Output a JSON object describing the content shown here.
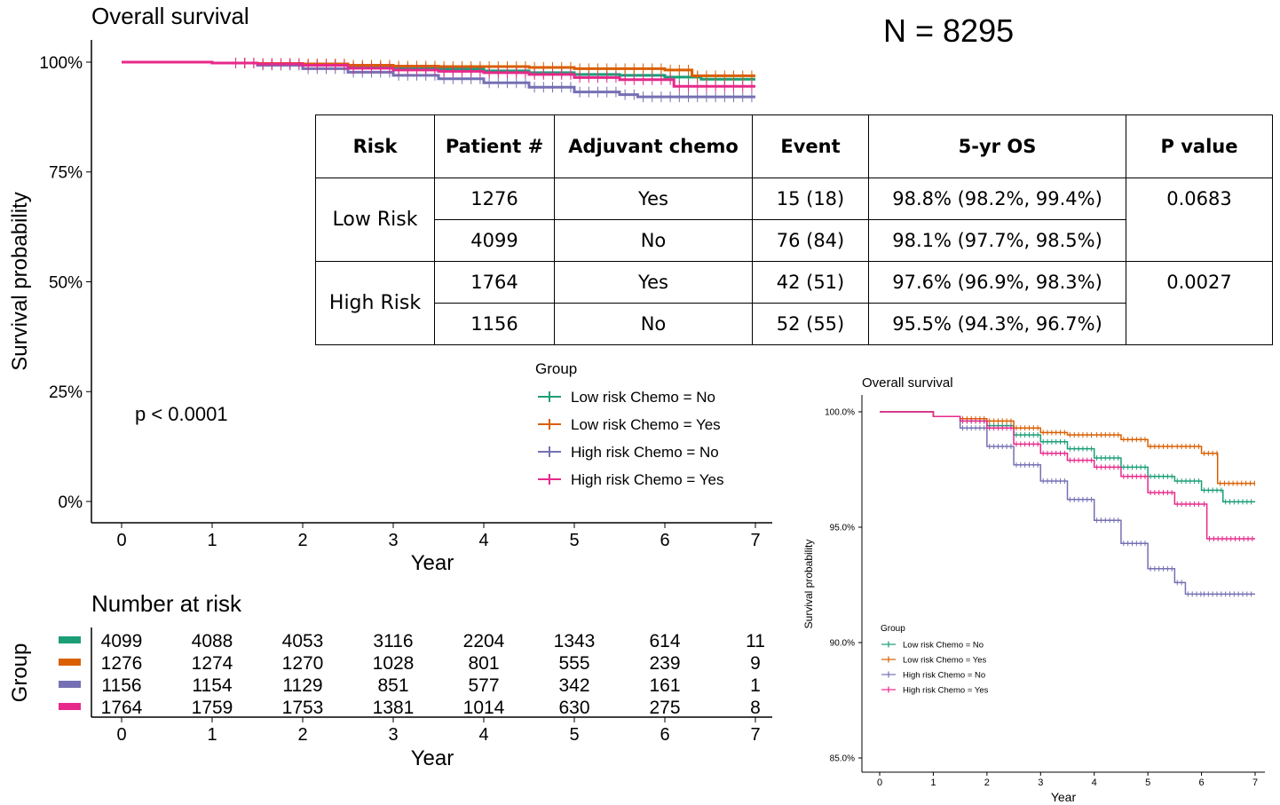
{
  "n_label": "N = 8295",
  "main_plot": {
    "title": "Overall survival",
    "pvalue": "p < 0.0001",
    "legend_title": "Group"
  },
  "table": {
    "headers": [
      "Risk",
      "Patient #",
      "Adjuvant chemo",
      "Event",
      "5-yr OS",
      "P value"
    ],
    "groups": [
      {
        "risk": "Low Risk",
        "pvalue": "0.0683",
        "rows": [
          {
            "patients": "1276",
            "chemo": "Yes",
            "event": "15 (18)",
            "os": "98.8% (98.2%, 99.4%)"
          },
          {
            "patients": "4099",
            "chemo": "No",
            "event": "76 (84)",
            "os": "98.1% (97.7%, 98.5%)"
          }
        ]
      },
      {
        "risk": "High Risk",
        "pvalue": "0.0027",
        "rows": [
          {
            "patients": "1764",
            "chemo": "Yes",
            "event": "42 (51)",
            "os": "97.6% (96.9%, 98.3%)"
          },
          {
            "patients": "1156",
            "chemo": "No",
            "event": "52 (55)",
            "os": "95.5% (94.3%, 96.7%)"
          }
        ]
      }
    ]
  },
  "risk_table": {
    "title": "Number at risk",
    "ylabel": "Group",
    "xlabel": "Year",
    "times": [
      0,
      1,
      2,
      3,
      4,
      5,
      6,
      7
    ],
    "rows": [
      {
        "color": "#1b9e77",
        "counts": [
          4099,
          4088,
          4053,
          3116,
          2204,
          1343,
          614,
          11
        ]
      },
      {
        "color": "#d95f02",
        "counts": [
          1276,
          1274,
          1270,
          1028,
          801,
          555,
          239,
          9
        ]
      },
      {
        "color": "#7570b3",
        "counts": [
          1156,
          1154,
          1129,
          851,
          577,
          342,
          161,
          1
        ]
      },
      {
        "color": "#e7298a",
        "counts": [
          1764,
          1759,
          1753,
          1381,
          1014,
          630,
          275,
          8
        ]
      }
    ]
  },
  "chart_data": [
    {
      "type": "line",
      "title": "Overall survival",
      "xlabel": "Year",
      "ylabel": "Survival probability",
      "xlim": [
        0,
        7
      ],
      "ylim": [
        0,
        1
      ],
      "xticks": [
        0,
        1,
        2,
        3,
        4,
        5,
        6,
        7
      ],
      "yticks": [
        0,
        0.25,
        0.5,
        0.75,
        1
      ],
      "ytick_labels": [
        "0%",
        "25%",
        "50%",
        "75%",
        "100%"
      ],
      "legend_title": "Group",
      "grid": false,
      "series": [
        {
          "name": "Low risk  Chemo = No",
          "color": "#1b9e77",
          "x": [
            0,
            1,
            1.5,
            2,
            2.5,
            3,
            3.5,
            4,
            4.5,
            5,
            5.5,
            6,
            6.4,
            7
          ],
          "y": [
            1.0,
            0.998,
            0.996,
            0.994,
            0.99,
            0.987,
            0.984,
            0.98,
            0.976,
            0.972,
            0.97,
            0.966,
            0.961,
            0.961
          ]
        },
        {
          "name": "Low risk  Chemo = Yes",
          "color": "#d95f02",
          "x": [
            0,
            1,
            1.5,
            2,
            2.5,
            3,
            3.5,
            4,
            4.5,
            5,
            5.5,
            6,
            6.3,
            7
          ],
          "y": [
            1.0,
            0.998,
            0.997,
            0.996,
            0.993,
            0.991,
            0.99,
            0.99,
            0.988,
            0.985,
            0.985,
            0.982,
            0.969,
            0.969
          ]
        },
        {
          "name": "High risk  Chemo = No",
          "color": "#7570b3",
          "x": [
            0,
            1,
            1.5,
            2,
            2.5,
            3,
            3.5,
            4,
            4.5,
            5,
            5.5,
            5.7,
            6,
            7
          ],
          "y": [
            1.0,
            0.998,
            0.993,
            0.985,
            0.977,
            0.97,
            0.962,
            0.953,
            0.943,
            0.932,
            0.926,
            0.921,
            0.921,
            0.921
          ]
        },
        {
          "name": "High risk  Chemo = Yes",
          "color": "#e7298a",
          "x": [
            0,
            1,
            1.5,
            2,
            2.5,
            3,
            3.5,
            4,
            4.5,
            5,
            5.5,
            6,
            6.1,
            7
          ],
          "y": [
            1.0,
            0.998,
            0.996,
            0.993,
            0.986,
            0.982,
            0.979,
            0.976,
            0.972,
            0.965,
            0.96,
            0.96,
            0.945,
            0.945
          ]
        }
      ]
    },
    {
      "type": "line",
      "title": "Overall survival",
      "xlabel": "Year",
      "ylabel": "Survival probability",
      "xlim": [
        0,
        7
      ],
      "ylim": [
        0.85,
        1
      ],
      "xticks": [
        0,
        1,
        2,
        3,
        4,
        5,
        6,
        7
      ],
      "yticks": [
        0.85,
        0.9,
        0.95,
        1
      ],
      "ytick_labels": [
        "85.0%",
        "90.0%",
        "95.0%",
        "100.0%"
      ],
      "legend_title": "Group",
      "legend_position": "bottom-left",
      "grid": false,
      "series": [
        {
          "name": "Low risk  Chemo = No",
          "color": "#1b9e77",
          "x": [
            0,
            1,
            1.5,
            2,
            2.5,
            3,
            3.5,
            4,
            4.5,
            5,
            5.5,
            6,
            6.4,
            7
          ],
          "y": [
            1.0,
            0.998,
            0.996,
            0.994,
            0.99,
            0.987,
            0.984,
            0.98,
            0.976,
            0.972,
            0.97,
            0.966,
            0.961,
            0.961
          ]
        },
        {
          "name": "Low risk  Chemo = Yes",
          "color": "#d95f02",
          "x": [
            0,
            1,
            1.5,
            2,
            2.5,
            3,
            3.5,
            4,
            4.5,
            5,
            5.5,
            6,
            6.3,
            7
          ],
          "y": [
            1.0,
            0.998,
            0.997,
            0.996,
            0.993,
            0.991,
            0.99,
            0.99,
            0.988,
            0.985,
            0.985,
            0.982,
            0.969,
            0.969
          ]
        },
        {
          "name": "High risk  Chemo = No",
          "color": "#7570b3",
          "x": [
            0,
            1,
            1.5,
            2,
            2.5,
            3,
            3.5,
            4,
            4.5,
            5,
            5.5,
            5.7,
            6,
            7
          ],
          "y": [
            1.0,
            0.998,
            0.993,
            0.985,
            0.977,
            0.97,
            0.962,
            0.953,
            0.943,
            0.932,
            0.926,
            0.921,
            0.921,
            0.921
          ]
        },
        {
          "name": "High risk  Chemo = Yes",
          "color": "#e7298a",
          "x": [
            0,
            1,
            1.5,
            2,
            2.5,
            3,
            3.5,
            4,
            4.5,
            5,
            5.5,
            6,
            6.1,
            7
          ],
          "y": [
            1.0,
            0.998,
            0.996,
            0.993,
            0.986,
            0.982,
            0.979,
            0.976,
            0.972,
            0.965,
            0.96,
            0.96,
            0.945,
            0.945
          ]
        }
      ]
    }
  ]
}
